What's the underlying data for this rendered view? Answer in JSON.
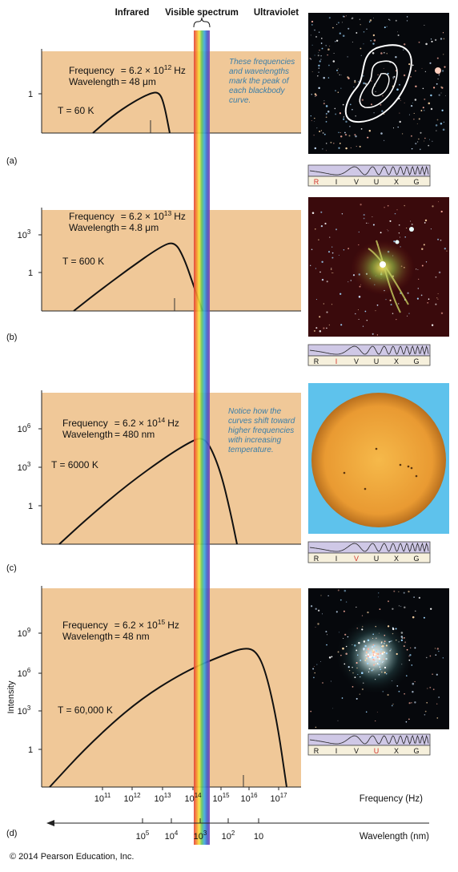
{
  "header": {
    "infrared": "Infrared",
    "visible": "Visible spectrum",
    "ultraviolet": "Ultraviolet"
  },
  "panels": [
    {
      "letter": "(a)",
      "frequency_label": "Frequency",
      "frequency_value": "= 6.2 × 10",
      "frequency_exp": "12",
      "frequency_unit": "Hz",
      "wavelength_label": "Wavelength",
      "wavelength_value": "= 48 μm",
      "temperature": "T = 60 K",
      "y_ticks": [
        {
          "base": "1",
          "exp": ""
        }
      ],
      "note": [
        "These frequencies",
        "and wavelengths",
        "mark the peak of",
        "each blackbody",
        "curve."
      ],
      "band_active": "R"
    },
    {
      "letter": "(b)",
      "frequency_label": "Frequency",
      "frequency_value": "= 6.2 × 10",
      "frequency_exp": "13",
      "frequency_unit": "Hz",
      "wavelength_label": "Wavelength",
      "wavelength_value": "= 4.8 μm",
      "temperature": "T = 600 K",
      "y_ticks": [
        {
          "base": "10",
          "exp": "3"
        },
        {
          "base": "1",
          "exp": ""
        }
      ],
      "note": [],
      "band_active": "I"
    },
    {
      "letter": "(c)",
      "frequency_label": "Frequency",
      "frequency_value": "= 6.2 × 10",
      "frequency_exp": "14",
      "frequency_unit": "Hz",
      "wavelength_label": "Wavelength",
      "wavelength_value": "= 480 nm",
      "temperature": "T = 6000 K",
      "y_ticks": [
        {
          "base": "10",
          "exp": "6"
        },
        {
          "base": "10",
          "exp": "3"
        },
        {
          "base": "1",
          "exp": ""
        }
      ],
      "note": [
        "Notice how the",
        "curves shift toward",
        "higher frequencies",
        "with increasing",
        "temperature."
      ],
      "band_active": "V"
    },
    {
      "letter": "(d)",
      "frequency_label": "Frequency",
      "frequency_value": "= 6.2 × 10",
      "frequency_exp": "15",
      "frequency_unit": "Hz",
      "wavelength_label": "Wavelength",
      "wavelength_value": "= 48 nm",
      "temperature": "T = 60,000 K",
      "y_ticks": [
        {
          "base": "10",
          "exp": "9"
        },
        {
          "base": "10",
          "exp": "6"
        },
        {
          "base": "10",
          "exp": "3"
        },
        {
          "base": "1",
          "exp": ""
        }
      ],
      "note": [],
      "band_active": "U"
    }
  ],
  "band_letters": [
    "R",
    "I",
    "V",
    "U",
    "X",
    "G"
  ],
  "y_axis_label": "Intensity",
  "x_axis": {
    "frequency_label": "Frequency (Hz)",
    "frequency_ticks": [
      {
        "base": "10",
        "exp": "11"
      },
      {
        "base": "10",
        "exp": "12"
      },
      {
        "base": "10",
        "exp": "13"
      },
      {
        "base": "10",
        "exp": "14"
      },
      {
        "base": "10",
        "exp": "15"
      },
      {
        "base": "10",
        "exp": "16"
      },
      {
        "base": "10",
        "exp": "17"
      }
    ],
    "wavelength_label": "Wavelength (nm)",
    "wavelength_ticks": [
      {
        "base": "10",
        "exp": "5"
      },
      {
        "base": "10",
        "exp": "4"
      },
      {
        "base": "10",
        "exp": "3"
      },
      {
        "base": "10",
        "exp": "2"
      },
      {
        "base": "10",
        "exp": ""
      }
    ]
  },
  "copyright": "© 2014 Pearson Education, Inc.",
  "colors": {
    "panel_fill": "#f0c898",
    "note_text": "#3b7ea8",
    "band_active": "#d0342c",
    "sky_blue": "#5ec2ec",
    "sun_fill": "#f1aa3c"
  }
}
